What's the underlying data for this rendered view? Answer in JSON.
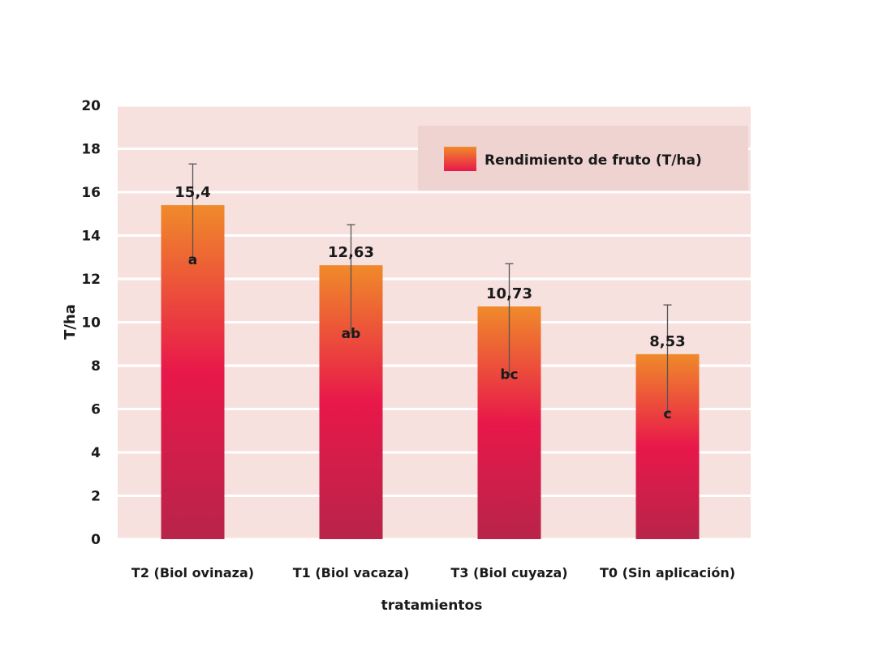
{
  "chart_data": {
    "type": "bar",
    "xlabel": "tratamientos",
    "ylabel": "T/ha",
    "ylim": [
      0,
      20
    ],
    "yticks": [
      0,
      2,
      4,
      6,
      8,
      10,
      12,
      14,
      16,
      18,
      20
    ],
    "categories": [
      "T2 (Biol ovinaza)",
      "T1 (Biol vacaza)",
      "T3 (Biol cuyaza)",
      "T0 (Sin aplicación)"
    ],
    "series": [
      {
        "name": "Rendimiento de fruto (T/ha)",
        "values": [
          15.4,
          12.63,
          10.73,
          8.53
        ],
        "value_labels": [
          "15,4",
          "12,63",
          "10,73",
          "8,53"
        ],
        "error_high": [
          17.3,
          14.5,
          12.7,
          10.8
        ],
        "error_low": [
          12.9,
          9.5,
          7.6,
          5.8
        ],
        "group_letters": [
          "a",
          "ab",
          "bc",
          "c"
        ]
      }
    ],
    "grid": true,
    "legend_position": "top-right",
    "colors": {
      "bar_top": "#f08a2a",
      "bar_mid": "#e8184a",
      "bar_bottom": "#b8244a",
      "plot_background": "#f7e1df",
      "legend_background": "#eed3d1",
      "gridline": "#ffffff",
      "text": "#1a1a1a",
      "error_bar": "#555555"
    }
  }
}
